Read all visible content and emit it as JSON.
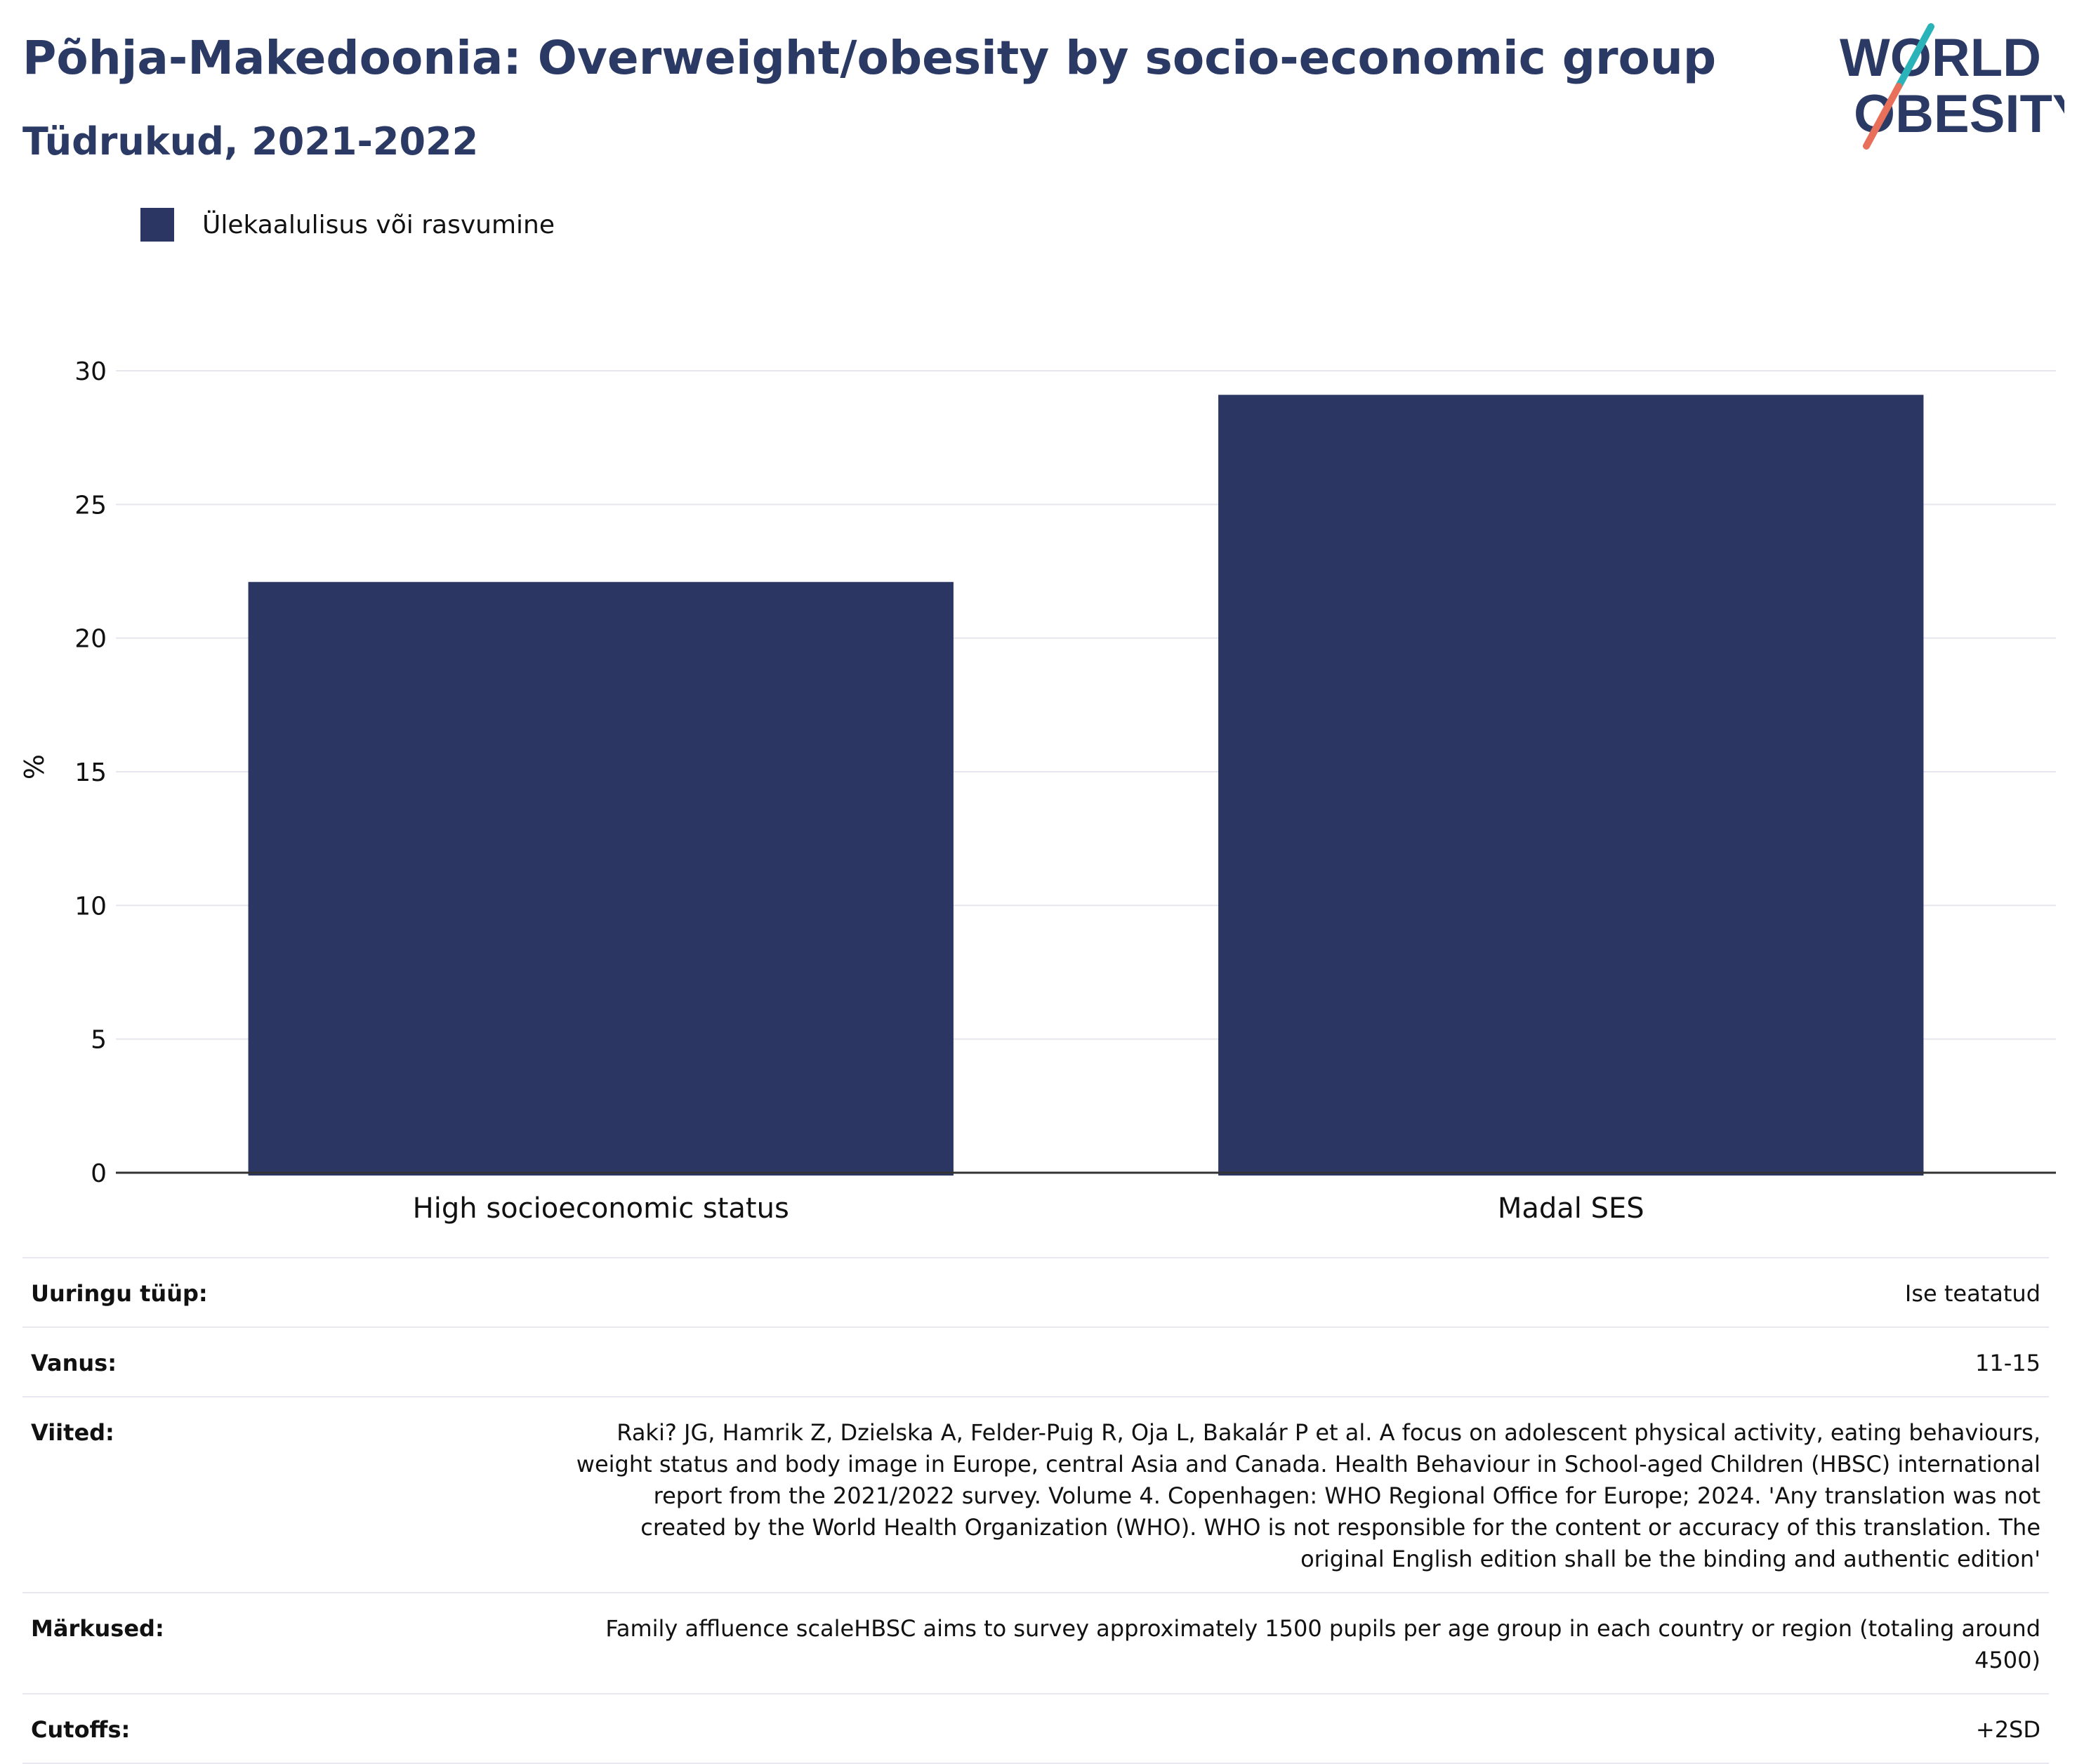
{
  "header": {
    "title": "Põhja-Makedoonia: Overweight/obesity by socio-economic group",
    "subtitle": "Tüdrukud, 2021-2022"
  },
  "logo": {
    "line1": "WORLD",
    "line2": "OBESITY",
    "icon": "world-obesity-logo"
  },
  "colors": {
    "bar": "#2b3762",
    "title": "#2b3a64",
    "grid": "#e6e6ee",
    "logo_slash_teal": "#2ab3b8",
    "logo_slash_coral": "#e8705a"
  },
  "chart_data": {
    "type": "bar",
    "categories": [
      "High socioeconomic status",
      "Madal SES"
    ],
    "series": [
      {
        "name": "Ülekaalulisus või rasvumine",
        "values": [
          22.1,
          29.1
        ]
      }
    ],
    "ylabel": "%",
    "xlabel": "",
    "ylim": [
      0,
      30
    ],
    "yticks": [
      0,
      5,
      10,
      15,
      20,
      25,
      30
    ],
    "grid": true,
    "legend_position": "top-left"
  },
  "meta": [
    {
      "key": "Uuringu tüüp:",
      "value": "Ise teatatud"
    },
    {
      "key": "Vanus:",
      "value": "11-15"
    },
    {
      "key": "Viited:",
      "value": "Raki? JG, Hamrik Z, Dzielska A, Felder-Puig R, Oja L, Bakalár P et al. A focus on adolescent physical activity, eating behaviours, weight status and body image in Europe, central Asia and Canada. Health Behaviour in School-aged Children (HBSC) international report from the 2021/2022 survey. Volume 4. Copenhagen: WHO Regional Office for Europe; 2024. 'Any translation was not created by the World Health Organization (WHO). WHO is not responsible for the content or accuracy of this translation. The original English edition shall be the binding and authentic edition'"
    },
    {
      "key": "Märkused:",
      "value": "Family affluence scaleHBSC aims to survey approximately 1500 pupils per age group in each country or region (totaling around 4500)"
    },
    {
      "key": "Cutoffs:",
      "value": "+2SD"
    }
  ]
}
